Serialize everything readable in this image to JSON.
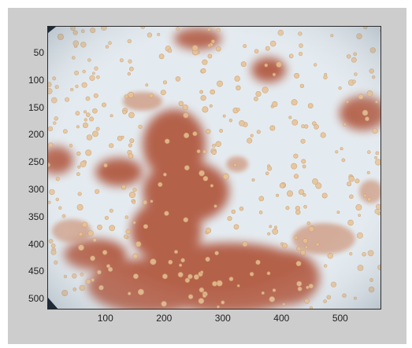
{
  "figure": {
    "image_description_icon": "microscope-image",
    "axes": {
      "y_ticks": [
        "50",
        "100",
        "150",
        "200",
        "250",
        "300",
        "350",
        "400",
        "450",
        "500"
      ],
      "x_ticks": [
        "100",
        "200",
        "300",
        "400",
        "500"
      ],
      "x_range": [
        1,
        570
      ],
      "y_range": [
        1,
        520
      ]
    },
    "colors": {
      "window_bg": "#cdcdcd",
      "image_bg": "#e6ecf1",
      "cluster": "#b5654a",
      "cell": "#e9c79a"
    }
  }
}
